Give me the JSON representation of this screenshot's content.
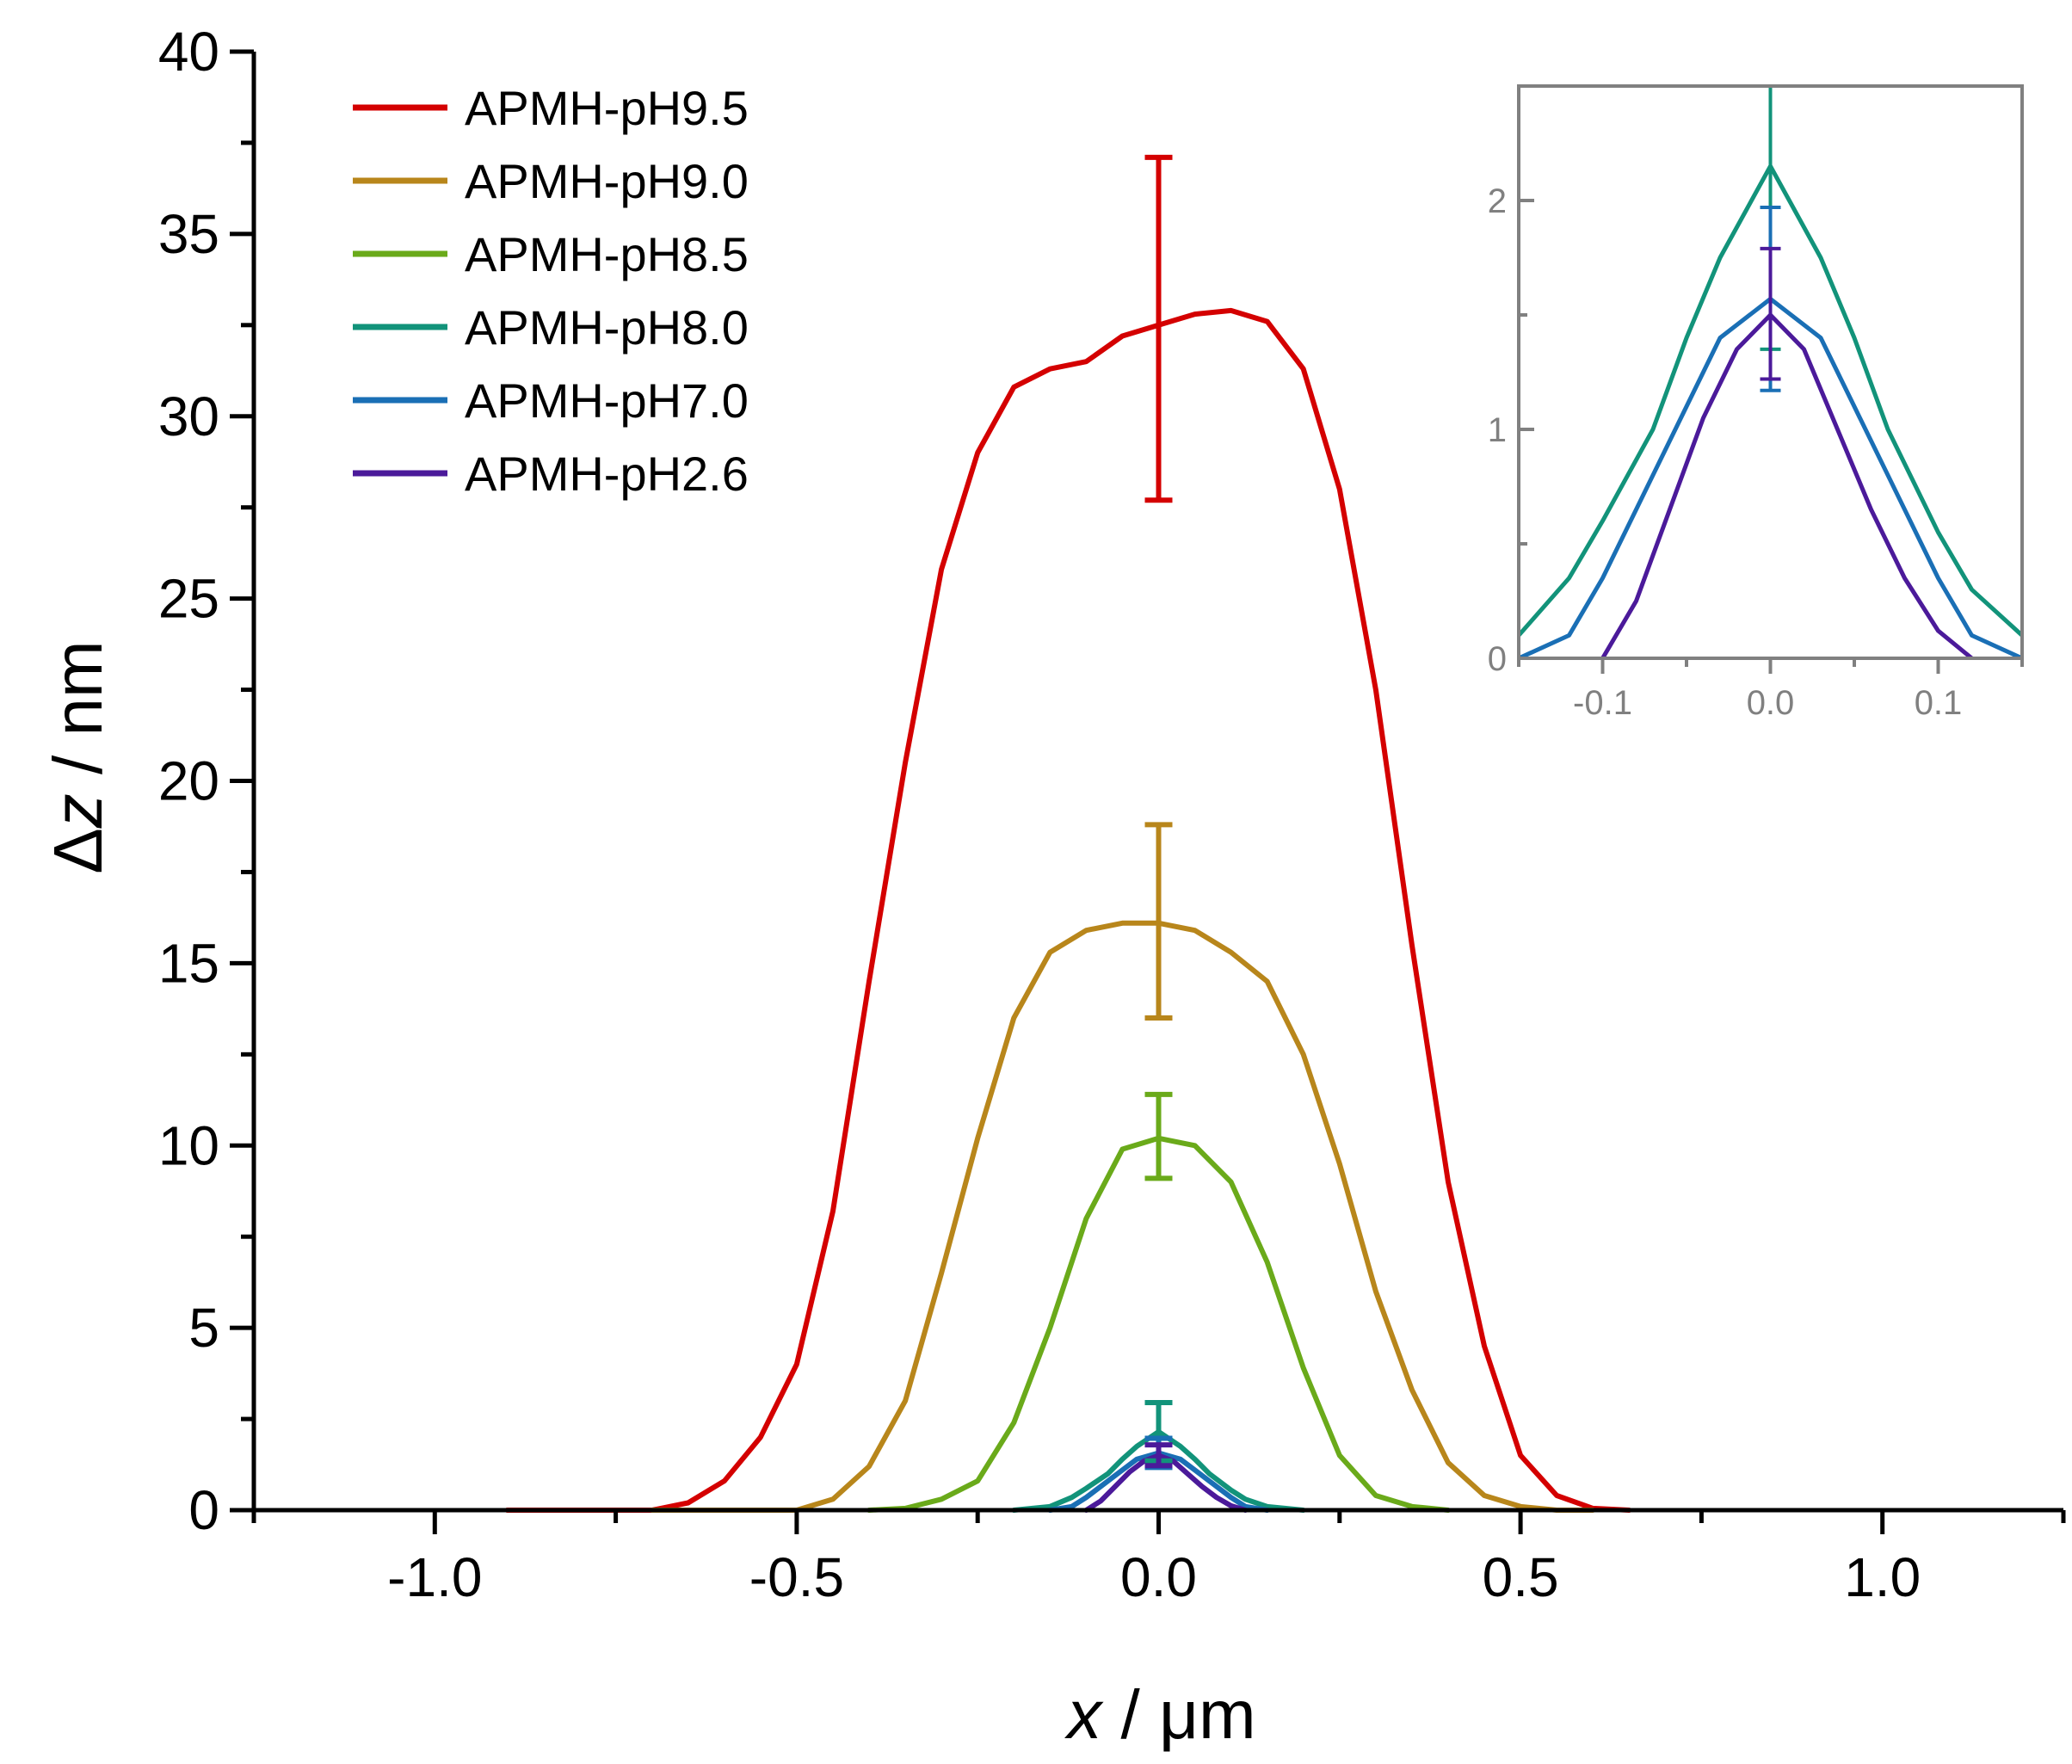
{
  "chart_data": {
    "type": "line",
    "xlabel_var": "x",
    "xlabel_unit": " / μm",
    "ylabel_var": "z",
    "ylabel_prefix": "Δ",
    "ylabel_unit": " / nm",
    "xlim": [
      -1.25,
      1.25
    ],
    "ylim": [
      0,
      40
    ],
    "xticks": [
      -1.0,
      -0.5,
      0.0,
      0.5,
      1.0
    ],
    "xtick_labels": [
      "-1.0",
      "-0.5",
      "0.0",
      "0.5",
      "1.0"
    ],
    "yticks": [
      0,
      5,
      10,
      15,
      20,
      25,
      30,
      35,
      40
    ],
    "ytick_labels": [
      "0",
      "5",
      "10",
      "15",
      "20",
      "25",
      "30",
      "35",
      "40"
    ],
    "legend_position": "top-left",
    "series": [
      {
        "name": "APMH-pH9.5",
        "color": "#d40000",
        "x": [
          -0.9,
          -0.7,
          -0.65,
          -0.6,
          -0.55,
          -0.5,
          -0.45,
          -0.4,
          -0.35,
          -0.3,
          -0.25,
          -0.2,
          -0.15,
          -0.1,
          -0.05,
          0.0,
          0.05,
          0.1,
          0.15,
          0.2,
          0.25,
          0.3,
          0.35,
          0.4,
          0.45,
          0.5,
          0.55,
          0.6,
          0.65
        ],
        "y": [
          0,
          0,
          0.2,
          0.8,
          2.0,
          4.0,
          8.2,
          14.5,
          20.5,
          25.8,
          29.0,
          30.8,
          31.3,
          31.5,
          32.2,
          32.5,
          32.8,
          32.9,
          32.6,
          31.3,
          28.0,
          22.5,
          15.5,
          9.0,
          4.5,
          1.5,
          0.4,
          0.05,
          0
        ],
        "error_x": 0.0,
        "error_y": 32.4,
        "error_low": 27.7,
        "error_high": 37.1
      },
      {
        "name": "APMH-pH9.0",
        "color": "#b8861b",
        "x": [
          -0.7,
          -0.5,
          -0.45,
          -0.4,
          -0.35,
          -0.3,
          -0.25,
          -0.2,
          -0.15,
          -0.1,
          -0.05,
          0.0,
          0.05,
          0.1,
          0.15,
          0.2,
          0.25,
          0.3,
          0.35,
          0.4,
          0.45,
          0.5,
          0.55,
          0.6
        ],
        "y": [
          0,
          0,
          0.3,
          1.2,
          3.0,
          6.5,
          10.2,
          13.5,
          15.3,
          15.9,
          16.1,
          16.1,
          15.9,
          15.3,
          14.5,
          12.5,
          9.5,
          6.0,
          3.3,
          1.3,
          0.4,
          0.1,
          0,
          0
        ],
        "error_x": 0.0,
        "error_y": 16.1,
        "error_low": 13.5,
        "error_high": 18.8
      },
      {
        "name": "APMH-pH8.5",
        "color": "#6aaa1a",
        "x": [
          -0.4,
          -0.35,
          -0.3,
          -0.25,
          -0.2,
          -0.15,
          -0.1,
          -0.05,
          0.0,
          0.05,
          0.1,
          0.15,
          0.2,
          0.25,
          0.3,
          0.35,
          0.4
        ],
        "y": [
          0,
          0.05,
          0.3,
          0.8,
          2.4,
          5.0,
          8.0,
          9.9,
          10.2,
          10.0,
          9.0,
          6.8,
          3.9,
          1.5,
          0.4,
          0.1,
          0
        ],
        "error_x": 0.0,
        "error_y": 10.2,
        "error_low": 9.1,
        "error_high": 11.4
      },
      {
        "name": "APMH-pH8.0",
        "color": "#12937a",
        "x": [
          -0.2,
          -0.15,
          -0.12,
          -0.1,
          -0.07,
          -0.05,
          -0.03,
          0.0,
          0.03,
          0.05,
          0.07,
          0.1,
          0.12,
          0.15,
          0.2
        ],
        "y": [
          0,
          0.1,
          0.35,
          0.6,
          1.0,
          1.4,
          1.75,
          2.15,
          1.75,
          1.4,
          1.0,
          0.55,
          0.3,
          0.1,
          0
        ],
        "error_x": 0.0,
        "error_y": 2.15,
        "error_low": 1.35,
        "error_high": 2.95
      },
      {
        "name": "APMH-pH7.0",
        "color": "#1a6fb5",
        "x": [
          -0.15,
          -0.12,
          -0.1,
          -0.07,
          -0.05,
          -0.03,
          0.0,
          0.03,
          0.05,
          0.07,
          0.1,
          0.12,
          0.15
        ],
        "y": [
          0,
          0.1,
          0.35,
          0.8,
          1.1,
          1.4,
          1.57,
          1.4,
          1.1,
          0.8,
          0.35,
          0.1,
          0
        ],
        "error_x": 0.0,
        "error_y": 1.57,
        "error_low": 1.17,
        "error_high": 1.97
      },
      {
        "name": "APMH-pH2.6",
        "color": "#4b1a9a",
        "x": [
          -0.1,
          -0.08,
          -0.06,
          -0.04,
          -0.02,
          0.0,
          0.02,
          0.04,
          0.06,
          0.08,
          0.1,
          0.12
        ],
        "y": [
          0,
          0.25,
          0.65,
          1.05,
          1.35,
          1.5,
          1.35,
          1.0,
          0.65,
          0.35,
          0.12,
          0
        ],
        "error_x": 0.0,
        "error_y": 1.5,
        "error_low": 1.22,
        "error_high": 1.79
      }
    ],
    "inset": {
      "xlim": [
        -0.15,
        0.15
      ],
      "ylim": [
        0,
        2.5
      ],
      "xticks": [
        -0.1,
        0.0,
        0.1
      ],
      "xtick_labels": [
        "-0.1",
        "0.0",
        "0.1"
      ],
      "yticks": [
        0,
        1,
        2
      ],
      "ytick_labels": [
        "0",
        "1",
        "2"
      ],
      "series_names": [
        "APMH-pH8.0",
        "APMH-pH7.0",
        "APMH-pH2.6"
      ]
    }
  }
}
